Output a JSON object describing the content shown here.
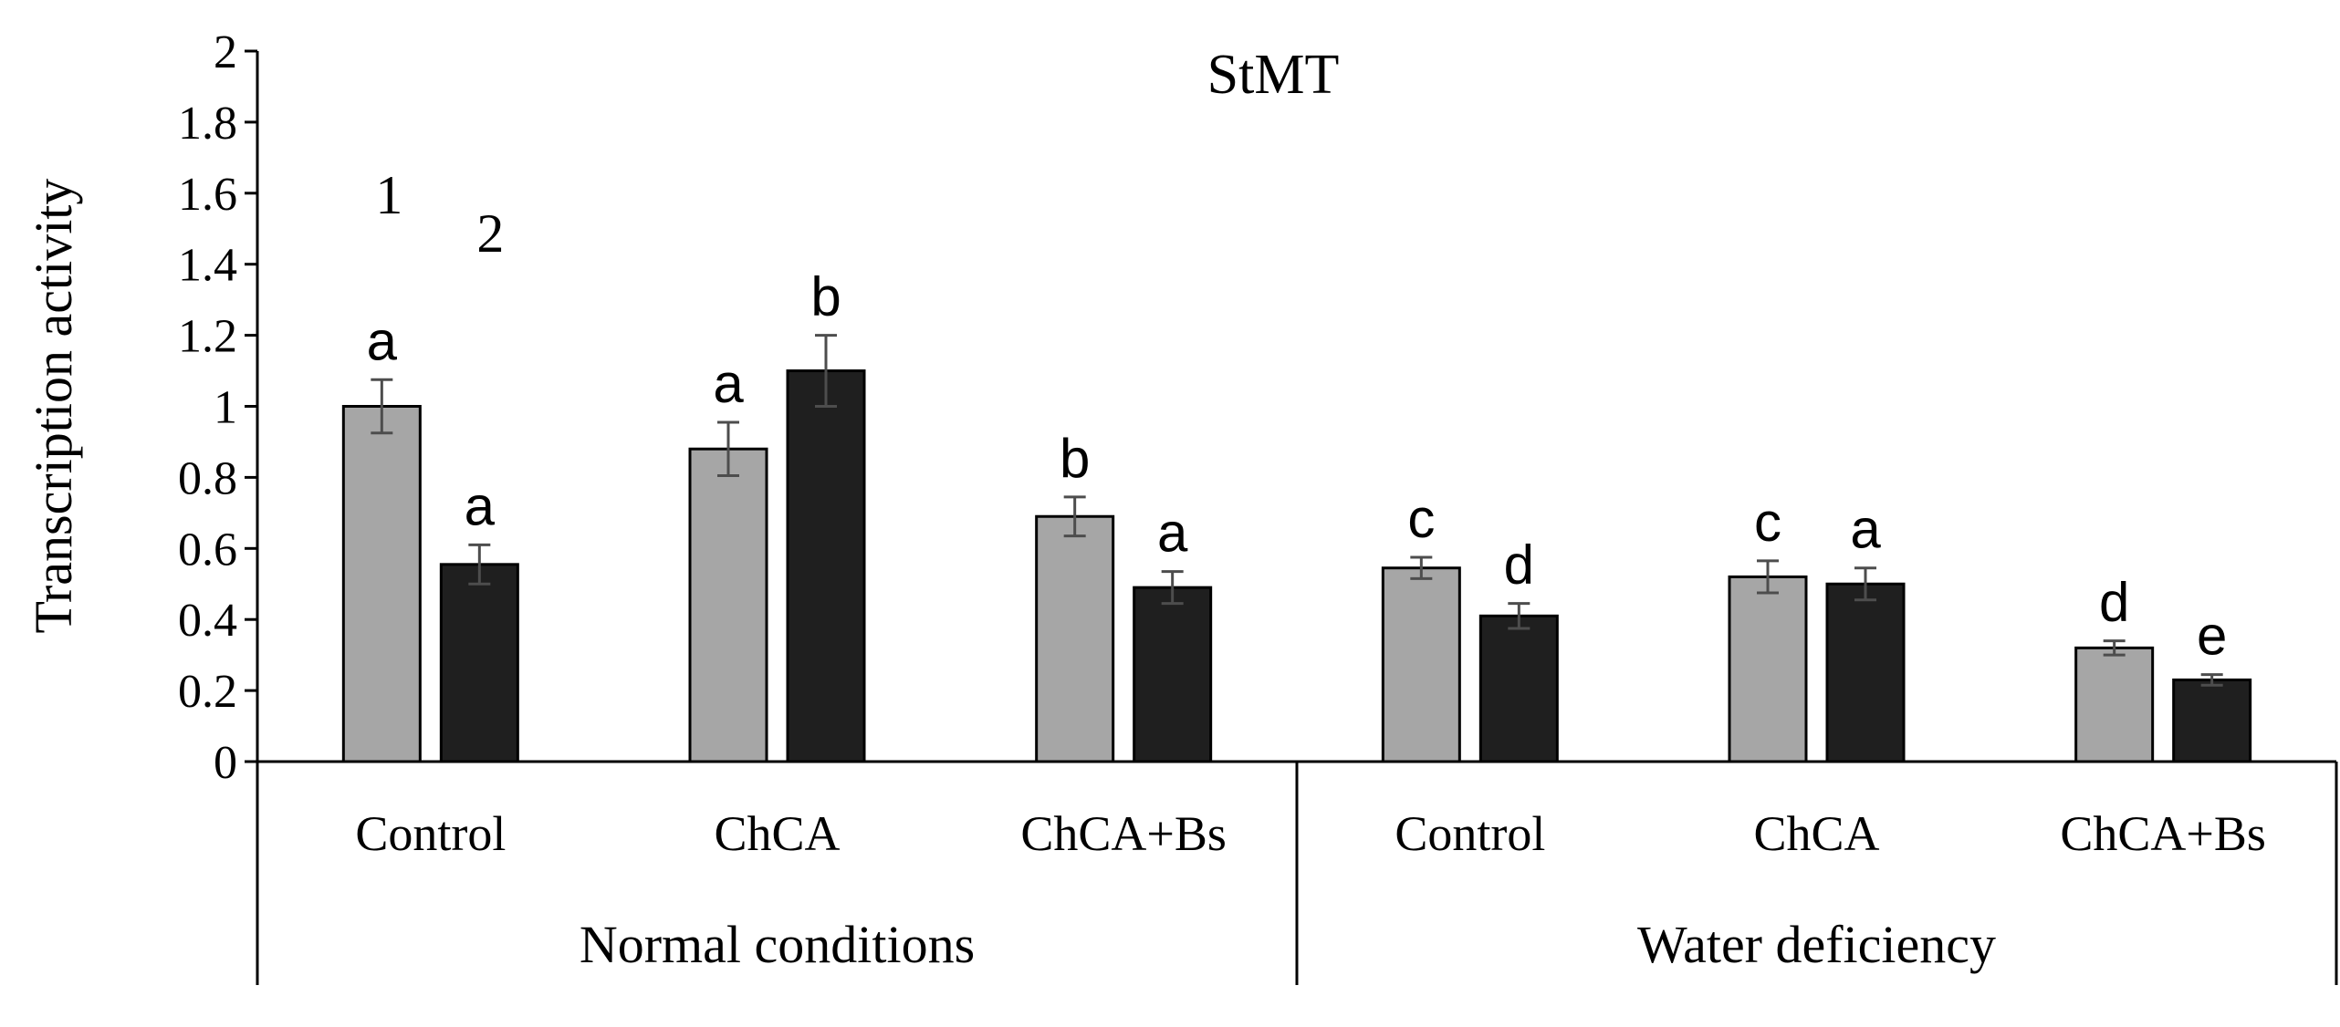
{
  "chart_data": {
    "type": "bar",
    "title": "StMT",
    "ylabel": "Transcription activity",
    "xlabel": "",
    "ylim": [
      0,
      2
    ],
    "yticks": [
      "0",
      "0.2",
      "0.4",
      "0.6",
      "0.8",
      "1",
      "1.2",
      "1.4",
      "1.6",
      "1.8",
      "2"
    ],
    "groups": [
      "Normal conditions",
      "Water deficiency"
    ],
    "categories": [
      "Control",
      "ChCA",
      "ChCA+Bs",
      "Control",
      "ChCA",
      "ChCA+Bs"
    ],
    "series": [
      {
        "name": "1",
        "color": "#a6a6a6",
        "values": [
          1.0,
          0.88,
          0.69,
          0.545,
          0.52,
          0.32
        ],
        "errors": [
          0.075,
          0.075,
          0.055,
          0.03,
          0.045,
          0.02
        ],
        "letters": [
          "a",
          "a",
          "b",
          "c",
          "c",
          "d"
        ]
      },
      {
        "name": "2",
        "color": "#1f1f1f",
        "values": [
          0.555,
          1.1,
          0.49,
          0.41,
          0.5,
          0.23
        ],
        "errors": [
          0.055,
          0.1,
          0.045,
          0.035,
          0.045,
          0.015
        ],
        "letters": [
          "a",
          "b",
          "a",
          "d",
          "a",
          "e"
        ]
      }
    ],
    "grid": false,
    "legend": "top-left"
  }
}
